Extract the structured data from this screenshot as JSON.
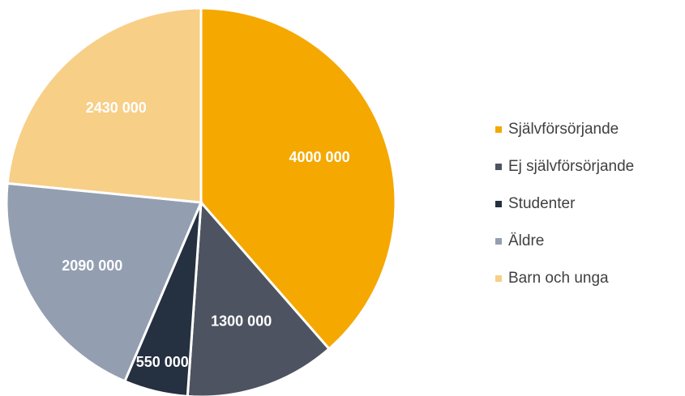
{
  "chart_data": {
    "type": "pie",
    "categories": [
      "Självförsörjande",
      "Ej självförsörjande",
      "Studenter",
      "Äldre",
      "Barn och unga"
    ],
    "values": [
      4000000,
      1300000,
      550000,
      2090000,
      2430000
    ],
    "value_labels": [
      "4000 000",
      "1300 000",
      "550 000",
      "2090 000",
      "2430 000"
    ],
    "colors": [
      "#f5a800",
      "#4d5360",
      "#253040",
      "#939fb0",
      "#f7cf87"
    ],
    "legend": "right"
  }
}
